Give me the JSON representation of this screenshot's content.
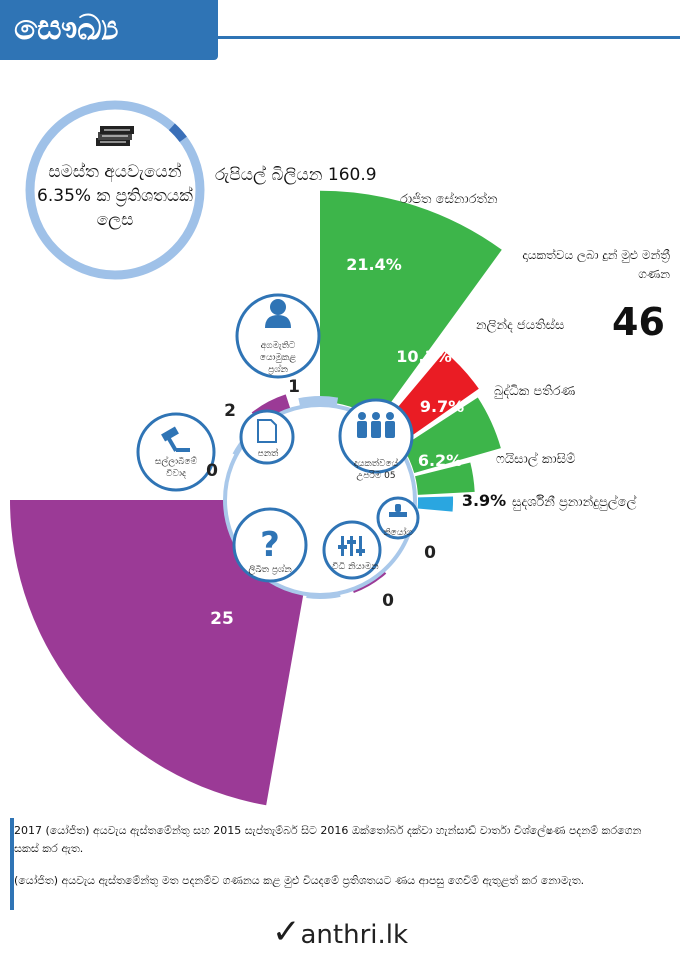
{
  "header": {
    "title": "සෞඛ්‍ය"
  },
  "budget": {
    "text": "සමස්ත අයවැයෙන් 6.35% ක ප්‍රතිශතයක් ලෙස",
    "amount": "රුපියල් බිලියන 160.9",
    "share_pct": 6.35
  },
  "mps": {
    "label": "දායකත්වය ලබා දුන් මුළු මන්ත්‍රී ගණන",
    "count": "46"
  },
  "chart_data": [
    {
      "type": "bar",
      "title": "",
      "categories": [
        "රාජිත සේනාරත්න",
        "නලින්ද ජයතිස්ස",
        "බුද්ධික පතිරණ",
        "ෆයිසාල් කාසිම්",
        "සුදර්ශිනී ප්‍රනාන්දුපුල්ලේ"
      ],
      "values": [
        21.4,
        10.3,
        9.7,
        6.2,
        3.9
      ],
      "value_labels": [
        "21.4%",
        "10.3%",
        "9.7%",
        "6.2%",
        "3.9%"
      ],
      "colors": [
        "#3db54a",
        "#ea1c24",
        "#3db54a",
        "#3db54a",
        "#2aa6e0"
      ]
    },
    {
      "type": "bar",
      "title": "",
      "categories": [
        "අගමැතිට යොමුකළ ප්‍රශ්න",
        "පනත්",
        "සල්ලාබීමේ විවාද",
        "ලිඛිත ප්‍රශ්න",
        "විධි නියාමන",
        "නියෝග"
      ],
      "values": [
        1,
        2,
        0,
        25,
        0,
        0
      ],
      "value_labels": [
        "1",
        "2",
        "0",
        "25",
        "0",
        "0"
      ],
      "colors": [
        "#a9c8ea",
        "#9b3a96",
        "#a9c8ea",
        "#9b3a96",
        "#a9c8ea",
        "#9b3a96"
      ]
    }
  ],
  "center": {
    "label": "දායකත්වයේ උපරිම 05"
  },
  "footer": {
    "line1": "2017 (යෝජිත) අයවැය ඇස්තමේන්තු සහ 2015 සැප්තැම්බර් සිට 2016 ඔක්තෝබර් දක්වා හැන්සාඩ් වාර්තා විශ්ලේෂණ පදනම් කරගෙන සකස් කර ඇත.",
    "line2": "(යෝජිත) අයවැය ඇස්තමේන්තු මත පදනම්ව ගණනය කළ මුළු වියදමේ ප්‍රතිශතයට ණය ආපසු ගෙවීම් ඇතුළත් කර නොමැත."
  },
  "logo": {
    "mark": "✓",
    "text": "anthri.lk"
  },
  "icons": [
    "money-stack-icon",
    "person-icon",
    "document-icon",
    "gavel-icon",
    "question-icon",
    "sliders-icon",
    "stamp-icon",
    "people-group-icon"
  ]
}
